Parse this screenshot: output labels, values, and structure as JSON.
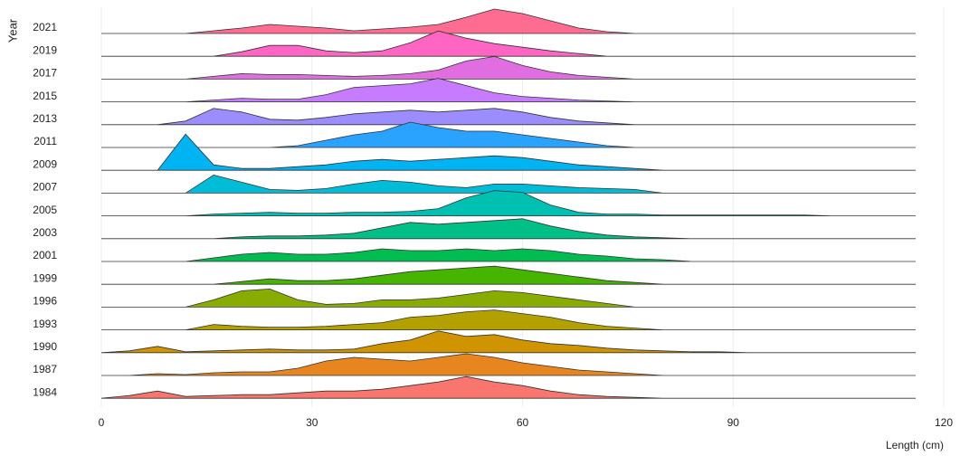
{
  "chart_data": {
    "type": "ridgeline",
    "x_label": "Length (cm)",
    "y_label": "Year",
    "xlim": [
      0,
      120
    ],
    "xticks": [
      0,
      30,
      60,
      90,
      120
    ],
    "grid": true,
    "x": [
      0,
      4,
      8,
      12,
      16,
      20,
      24,
      28,
      32,
      36,
      40,
      44,
      48,
      52,
      56,
      60,
      64,
      68,
      72,
      76,
      80,
      84,
      88,
      92,
      96,
      100,
      104,
      108,
      112,
      116
    ],
    "series": [
      {
        "name": "1984",
        "color": "#F8766D",
        "values": [
          0,
          3,
          8,
          2,
          3,
          4,
          4,
          6,
          8,
          8,
          10,
          14,
          18,
          24,
          18,
          14,
          8,
          4,
          2,
          1,
          0,
          0,
          0,
          0,
          0,
          0,
          0,
          0,
          0,
          0
        ]
      },
      {
        "name": "1987",
        "color": "#E7851E",
        "values": [
          0,
          0,
          2,
          1,
          3,
          4,
          4,
          8,
          16,
          20,
          18,
          16,
          20,
          24,
          20,
          14,
          10,
          6,
          4,
          2,
          0,
          0,
          0,
          0,
          0,
          0,
          0,
          0,
          0,
          0
        ]
      },
      {
        "name": "1990",
        "color": "#D09400",
        "values": [
          0,
          2,
          7,
          1,
          2,
          3,
          4,
          3,
          3,
          4,
          10,
          14,
          24,
          18,
          20,
          14,
          10,
          8,
          5,
          3,
          2,
          1,
          1,
          0,
          0,
          0,
          0,
          0,
          0,
          0
        ]
      },
      {
        "name": "1993",
        "color": "#B2A100",
        "values": [
          0,
          0,
          0,
          0,
          6,
          4,
          3,
          3,
          4,
          6,
          8,
          14,
          16,
          20,
          22,
          18,
          14,
          8,
          4,
          2,
          0,
          0,
          0,
          0,
          0,
          0,
          0,
          0,
          0,
          0
        ]
      },
      {
        "name": "1996",
        "color": "#89AC00",
        "values": [
          0,
          0,
          0,
          0,
          8,
          18,
          20,
          8,
          3,
          4,
          8,
          8,
          10,
          14,
          18,
          16,
          12,
          8,
          4,
          0,
          0,
          0,
          0,
          0,
          0,
          0,
          0,
          0,
          0,
          0
        ]
      },
      {
        "name": "1999",
        "color": "#45B500",
        "values": [
          0,
          0,
          0,
          0,
          0,
          3,
          6,
          4,
          4,
          6,
          10,
          14,
          16,
          18,
          20,
          16,
          12,
          8,
          4,
          2,
          0,
          0,
          0,
          0,
          0,
          0,
          0,
          0,
          0,
          0
        ]
      },
      {
        "name": "2001",
        "color": "#00BC51",
        "values": [
          0,
          0,
          0,
          0,
          4,
          8,
          10,
          8,
          8,
          10,
          14,
          12,
          12,
          14,
          12,
          14,
          12,
          8,
          6,
          3,
          2,
          0,
          0,
          0,
          0,
          0,
          0,
          0,
          0,
          0
        ]
      },
      {
        "name": "2003",
        "color": "#00C087",
        "values": [
          0,
          0,
          0,
          0,
          0,
          2,
          3,
          3,
          4,
          6,
          12,
          18,
          16,
          18,
          20,
          22,
          14,
          8,
          4,
          2,
          1,
          0,
          0,
          0,
          0,
          0,
          0,
          0,
          0,
          0
        ]
      },
      {
        "name": "2005",
        "color": "#00C0B2",
        "values": [
          0,
          0,
          0,
          0,
          2,
          3,
          4,
          3,
          3,
          4,
          4,
          5,
          8,
          20,
          28,
          26,
          12,
          4,
          2,
          2,
          1,
          1,
          1,
          1,
          1,
          1,
          0,
          0,
          0,
          0
        ]
      },
      {
        "name": "2007",
        "color": "#00BCD6",
        "values": [
          0,
          0,
          0,
          0,
          20,
          12,
          4,
          3,
          5,
          10,
          14,
          12,
          8,
          6,
          10,
          10,
          8,
          6,
          5,
          4,
          0,
          0,
          0,
          0,
          0,
          0,
          0,
          0,
          0,
          0
        ]
      },
      {
        "name": "2009",
        "color": "#00B3F2",
        "values": [
          0,
          0,
          0,
          40,
          6,
          2,
          2,
          4,
          6,
          10,
          12,
          10,
          12,
          14,
          16,
          14,
          10,
          6,
          4,
          2,
          0,
          0,
          0,
          0,
          0,
          0,
          0,
          0,
          0,
          0
        ]
      },
      {
        "name": "2011",
        "color": "#29A3FF",
        "values": [
          0,
          0,
          0,
          0,
          0,
          0,
          0,
          2,
          8,
          14,
          18,
          28,
          22,
          18,
          18,
          14,
          10,
          6,
          2,
          0,
          0,
          0,
          0,
          0,
          0,
          0,
          0,
          0,
          0,
          0
        ]
      },
      {
        "name": "2013",
        "color": "#9C8DFF",
        "values": [
          0,
          0,
          0,
          4,
          18,
          14,
          6,
          5,
          8,
          12,
          14,
          16,
          14,
          16,
          18,
          14,
          8,
          4,
          2,
          0,
          0,
          0,
          0,
          0,
          0,
          0,
          0,
          0,
          0,
          0
        ]
      },
      {
        "name": "2015",
        "color": "#C77CFF",
        "values": [
          0,
          0,
          0,
          0,
          2,
          4,
          3,
          3,
          8,
          16,
          18,
          20,
          26,
          18,
          10,
          6,
          4,
          2,
          1,
          0,
          0,
          0,
          0,
          0,
          0,
          0,
          0,
          0,
          0,
          0
        ]
      },
      {
        "name": "2017",
        "color": "#E16EE0",
        "values": [
          0,
          0,
          0,
          0,
          3,
          6,
          5,
          5,
          4,
          3,
          4,
          6,
          10,
          20,
          25,
          15,
          8,
          4,
          2,
          0,
          0,
          0,
          0,
          0,
          0,
          0,
          0,
          0,
          0,
          0
        ]
      },
      {
        "name": "2019",
        "color": "#FF65C2",
        "values": [
          0,
          0,
          0,
          0,
          0,
          5,
          12,
          12,
          6,
          4,
          6,
          15,
          28,
          20,
          14,
          10,
          6,
          3,
          0,
          0,
          0,
          0,
          0,
          0,
          0,
          0,
          0,
          0,
          0,
          0
        ]
      },
      {
        "name": "2021",
        "color": "#FF6C91",
        "values": [
          0,
          0,
          0,
          0,
          3,
          6,
          10,
          8,
          6,
          3,
          5,
          7,
          10,
          18,
          27,
          22,
          14,
          6,
          2,
          0,
          0,
          0,
          0,
          0,
          0,
          0,
          0,
          0,
          0,
          0
        ]
      }
    ]
  }
}
